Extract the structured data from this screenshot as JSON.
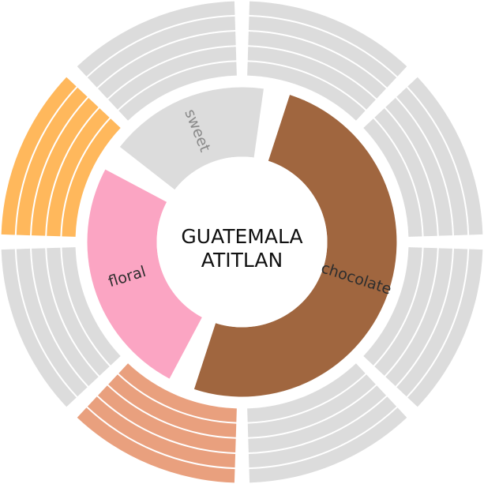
{
  "chart_data": {
    "type": "pie",
    "title": "",
    "center_label": {
      "line1": "GUATEMALA",
      "line2": "ATITLAN"
    },
    "inner_ring": [
      {
        "label": "chocolate",
        "value": 50.0,
        "color": "#a0663f",
        "text_color": "#2e2e2e"
      },
      {
        "label": "floral",
        "value": 25.0,
        "color": "#fba5c3",
        "text_color": "#2e2e2e"
      },
      {
        "label": "sweet",
        "value": 16.7,
        "color": "#dcdcdc",
        "text_color": "#8a8a8a"
      }
    ],
    "outer_ring": {
      "rings_per_segment": 5,
      "segments": [
        {
          "value": 12.5,
          "color": "#e9a07e",
          "highlighted": true
        },
        {
          "value": 12.5,
          "color": "#dcdcdc",
          "highlighted": false
        },
        {
          "value": 12.5,
          "color": "#ffb85c",
          "highlighted": true
        },
        {
          "value": 12.5,
          "color": "#dcdcdc",
          "highlighted": false
        },
        {
          "value": 12.5,
          "color": "#dcdcdc",
          "highlighted": false
        },
        {
          "value": 12.5,
          "color": "#dcdcdc",
          "highlighted": false
        },
        {
          "value": 12.5,
          "color": "#dcdcdc",
          "highlighted": false
        },
        {
          "value": 12.5,
          "color": "#dcdcdc",
          "highlighted": false
        }
      ]
    }
  }
}
